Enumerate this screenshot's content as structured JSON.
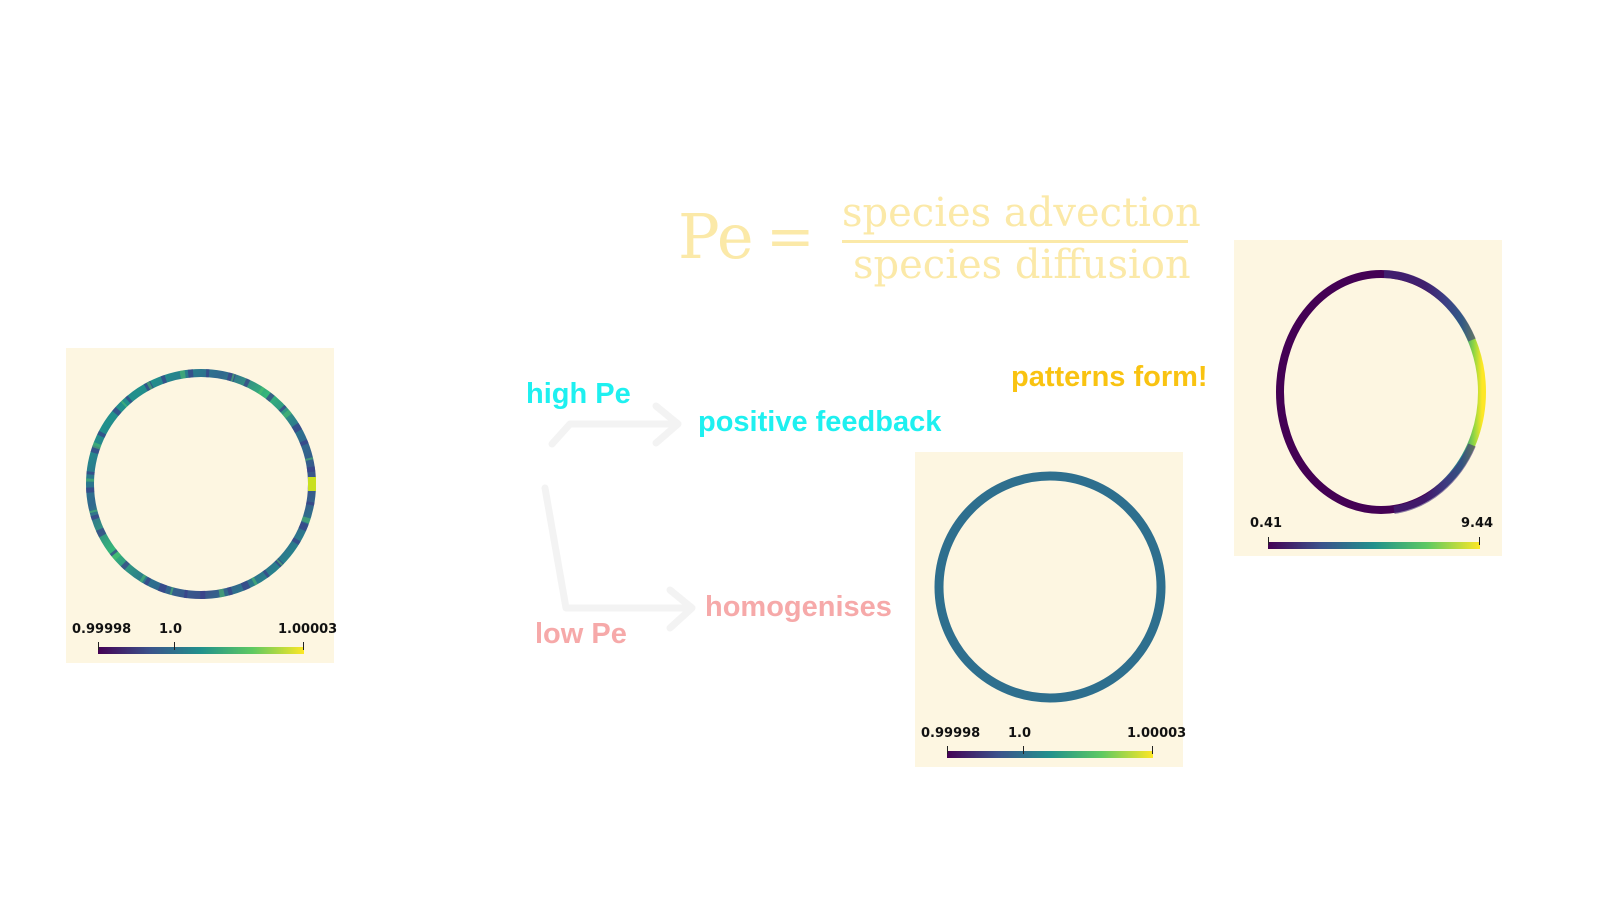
{
  "equation": {
    "lhs": "Pe",
    "equals": "=",
    "numerator": "species advection",
    "denominator": "species diffusion"
  },
  "flow": {
    "high_label": "high Pe",
    "high_result": "positive feedback",
    "low_label": "low Pe",
    "low_result": "homogenises",
    "outcome": "patterns form!"
  },
  "panels": {
    "initial": {
      "min": "0.99998",
      "mid": "1.0",
      "max": "1.00003"
    },
    "homogeneous": {
      "min": "0.99998",
      "mid": "1.0",
      "max": "1.00003"
    },
    "pattern": {
      "min": "0.41",
      "max": "9.44"
    }
  },
  "colors": {
    "high": "#1ef0f0",
    "low": "#f6a9a9",
    "outcome": "#f9c311",
    "equation": "#fbe9a8",
    "panel_bg": "#fdf6e1",
    "arrows": "#f3f3f3"
  },
  "colormap": "viridis"
}
